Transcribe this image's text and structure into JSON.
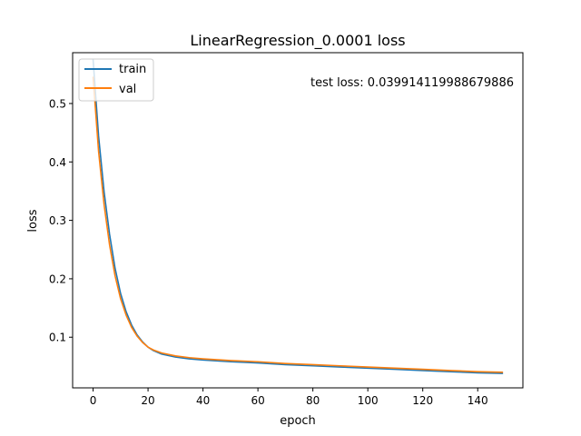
{
  "chart_data": {
    "type": "line",
    "title": "LinearRegression_0.0001 loss",
    "xlabel": "epoch",
    "ylabel": "loss",
    "xlim": [
      -7.45,
      156.45
    ],
    "ylim": [
      0.0133,
      0.587
    ],
    "xticks": [
      0,
      20,
      40,
      60,
      80,
      100,
      120,
      140
    ],
    "yticks": [
      0.1,
      0.2,
      0.3,
      0.4,
      0.5
    ],
    "xtick_labels": [
      "0",
      "20",
      "40",
      "60",
      "80",
      "100",
      "120",
      "140"
    ],
    "ytick_labels": [
      "0.1",
      "0.2",
      "0.3",
      "0.4",
      "0.5"
    ],
    "annotation": "test loss: 0.039914119988679886",
    "legend_position": "top-left",
    "grid": false,
    "series": [
      {
        "name": "train",
        "color": "#1f77b4",
        "x": [
          0,
          2,
          4,
          6,
          8,
          10,
          12,
          14,
          16,
          18,
          20,
          22,
          25,
          30,
          35,
          40,
          50,
          60,
          70,
          80,
          90,
          100,
          110,
          120,
          130,
          140,
          149
        ],
        "y": [
          0.575,
          0.444,
          0.349,
          0.276,
          0.218,
          0.175,
          0.144,
          0.121,
          0.104,
          0.092,
          0.083,
          0.077,
          0.071,
          0.066,
          0.063,
          0.061,
          0.058,
          0.056,
          0.053,
          0.051,
          0.049,
          0.047,
          0.045,
          0.043,
          0.041,
          0.039,
          0.038
        ]
      },
      {
        "name": "val",
        "color": "#ff7f0e",
        "x": [
          0,
          2,
          4,
          6,
          8,
          10,
          12,
          14,
          16,
          18,
          20,
          22,
          25,
          30,
          35,
          40,
          50,
          60,
          70,
          80,
          90,
          100,
          110,
          120,
          130,
          140,
          149
        ],
        "y": [
          0.545,
          0.418,
          0.327,
          0.258,
          0.205,
          0.166,
          0.138,
          0.117,
          0.102,
          0.091,
          0.083,
          0.078,
          0.073,
          0.068,
          0.065,
          0.063,
          0.06,
          0.058,
          0.055,
          0.053,
          0.051,
          0.049,
          0.047,
          0.045,
          0.043,
          0.041,
          0.04
        ]
      }
    ]
  }
}
